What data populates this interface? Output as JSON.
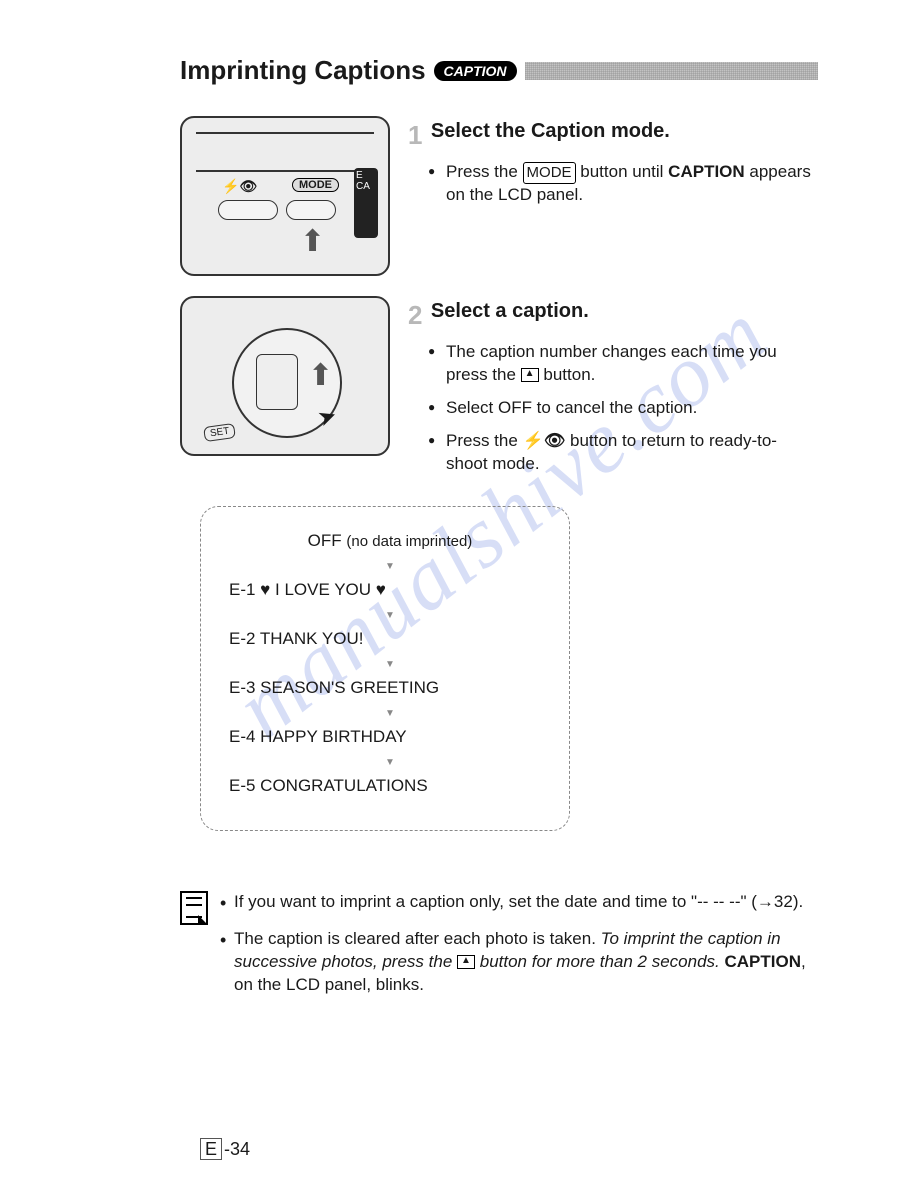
{
  "title": "Imprinting Captions",
  "caption_badge": "CAPTION",
  "watermark": "manualshive.com",
  "step1": {
    "num": "1",
    "heading": "Select the Caption mode.",
    "mode_label": "MODE",
    "illus_mode": "MODE",
    "illus_side": "E CA",
    "bullet1_a": "Press the ",
    "bullet1_b": " button until ",
    "bullet1_c": "CAPTION",
    "bullet1_d": " appears on the LCD panel."
  },
  "step2": {
    "num": "2",
    "heading": "Select a caption.",
    "illus_set": "SET",
    "bullet1": "The caption number changes each time you press the ",
    "bullet1_end": " button.",
    "bullet2": "Select OFF to cancel the caption.",
    "bullet3_a": "Press the ",
    "bullet3_flasheye": "⚡👁",
    "bullet3_b": " button to return to ready-to-shoot mode."
  },
  "captions_list": {
    "off": "OFF",
    "off_note": "(no data imprinted)",
    "items": [
      "E-1 ♥ I LOVE YOU ♥",
      "E-2 THANK YOU!",
      "E-3 SEASON'S GREETING",
      "E-4 HAPPY BIRTHDAY",
      "E-5 CONGRATULATIONS"
    ]
  },
  "notes": {
    "n1": "If you want to imprint a caption only, set the date and time to \"-- -- --\" (→32).",
    "n2_a": "The caption is cleared after each photo is taken. ",
    "n2_b": "To imprint the caption in successive photos, press the ",
    "n2_c": " button for more than 2 seconds. ",
    "n2_d": "CAPTION",
    "n2_e": ", on the LCD panel, blinks."
  },
  "page": {
    "e": "E",
    "num": "-34"
  }
}
